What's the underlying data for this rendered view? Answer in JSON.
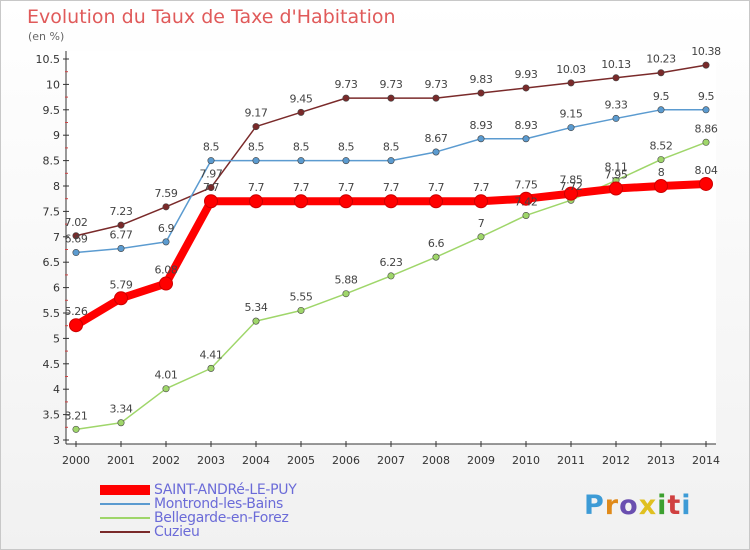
{
  "title": "Evolution du Taux de Taxe d'Habitation",
  "unit_label": "(en %)",
  "logo": {
    "text": [
      "P",
      "r",
      "o",
      "x",
      "i",
      "t",
      "i"
    ],
    "colors": [
      "#3d9bd6",
      "#e08a1a",
      "#6a4fb0",
      "#e0c020",
      "#3da030",
      "#d04040",
      "#3d9bd6"
    ]
  },
  "chart_data": {
    "type": "line",
    "title": "Evolution du Taux de Taxe d'Habitation",
    "ylabel": "(en %)",
    "xlabel": "",
    "x": [
      "2000",
      "2001",
      "2002",
      "2003",
      "2004",
      "2005",
      "2006",
      "2007",
      "2008",
      "2009",
      "2010",
      "2011",
      "2012",
      "2013",
      "2014"
    ],
    "ylim": [
      3,
      10.5
    ],
    "yticks": [
      "3",
      "3.5",
      "4",
      "4.5",
      "5",
      "5.5",
      "6",
      "6.5",
      "7",
      "7.5",
      "8",
      "8.5",
      "9",
      "9.5",
      "10",
      "10.5"
    ],
    "grid": false,
    "legend_position": "bottom-left",
    "series": [
      {
        "name": "Cuzieu",
        "color": "#7a2a2a",
        "values": [
          7.02,
          7.23,
          7.59,
          7.97,
          9.17,
          9.45,
          9.73,
          9.73,
          9.73,
          9.83,
          9.93,
          10.03,
          10.13,
          10.23,
          10.38
        ],
        "labels": [
          "7.02",
          "7.23",
          "7.59",
          "7.97",
          "9.17",
          "9.45",
          "9.73",
          "9.73",
          "9.73",
          "9.83",
          "9.93",
          "10.03",
          "10.13",
          "10.23",
          "10.38"
        ]
      },
      {
        "name": "Montrond-les-Bains",
        "color": "#5b9bd0",
        "values": [
          6.69,
          6.77,
          6.9,
          8.5,
          8.5,
          8.5,
          8.5,
          8.5,
          8.67,
          8.93,
          8.93,
          9.15,
          9.33,
          9.5,
          9.5
        ],
        "labels": [
          "6.69",
          "6.77",
          "6.9",
          "8.5",
          "8.5",
          "8.5",
          "8.5",
          "8.5",
          "8.67",
          "8.93",
          "8.93",
          "9.15",
          "9.33",
          "9.5",
          "9.5"
        ]
      },
      {
        "name": "Bellegarde-en-Forez",
        "color": "#9fd66a",
        "values": [
          3.21,
          3.34,
          4.01,
          4.41,
          5.34,
          5.55,
          5.88,
          6.23,
          6.6,
          7,
          7.42,
          7.72,
          8.11,
          8.52,
          8.86
        ],
        "labels": [
          "3.21",
          "3.34",
          "4.01",
          "4.41",
          "5.34",
          "5.55",
          "5.88",
          "6.23",
          "6.6",
          "7",
          "7.42",
          "7.72",
          "8.11",
          "8.52",
          "8.86"
        ]
      },
      {
        "name": "SAINT-ANDRé-LE-PUY",
        "color": "#ff0000",
        "values": [
          5.26,
          5.79,
          6.08,
          7.7,
          7.7,
          7.7,
          7.7,
          7.7,
          7.7,
          7.7,
          7.75,
          7.85,
          7.95,
          8,
          8.04
        ],
        "labels": [
          "5.26",
          "5.79",
          "6.08",
          "7.7",
          "7.7",
          "7.7",
          "7.7",
          "7.7",
          "7.7",
          "7.7",
          "7.75",
          "7.85",
          "7.95",
          "8",
          "8.04"
        ]
      }
    ],
    "legend": [
      "SAINT-ANDRé-LE-PUY",
      "Montrond-les-Bains",
      "Bellegarde-en-Forez",
      "Cuzieu"
    ]
  }
}
